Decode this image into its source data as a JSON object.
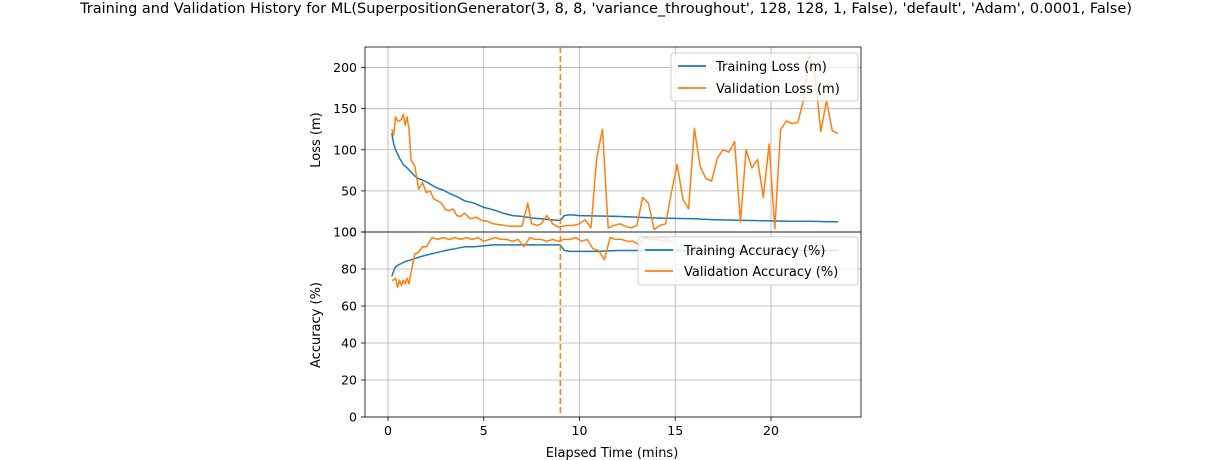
{
  "chart_data": {
    "title": "Training and Validation History for ML(SuperpositionGenerator(3, 8, 8, 'variance_throughout', 128, 128, 1, False), 'default', 'Adam', 0.0001, False)",
    "xlabel": "Elapsed Time (mins)",
    "xlim": [
      -1.2,
      24.7
    ],
    "x_ticks": [
      0,
      5,
      10,
      15,
      20
    ],
    "marker_x": 9.0,
    "marker_color": "#ff7f0e",
    "grid": true,
    "colors": {
      "training": "#1f77b4",
      "validation": "#ff7f0e"
    },
    "panels": [
      {
        "id": "loss",
        "type": "line",
        "ylabel": "Loss (m)",
        "ylim": [
          0,
          225
        ],
        "y_ticks": [
          0,
          50,
          100,
          150,
          200
        ],
        "legend": "top-right",
        "series": [
          {
            "name": "Training Loss (m)",
            "key": "training",
            "x": [
              0.2,
              0.3,
              0.4,
              0.5,
              0.6,
              0.7,
              0.8,
              0.9,
              1.0,
              1.2,
              1.4,
              1.6,
              1.8,
              2.0,
              2.3,
              2.6,
              2.9,
              3.2,
              3.6,
              4.0,
              4.5,
              5.0,
              5.5,
              6.0,
              6.5,
              7.0,
              7.5,
              8.0,
              8.5,
              9.0,
              9.2,
              9.5,
              10.0,
              11.0,
              12.0,
              13.0,
              14.0,
              15.0,
              16.0,
              17.0,
              18.0,
              19.0,
              20.0,
              21.0,
              22.0,
              23.0,
              23.5
            ],
            "values": [
              120,
              107,
              100,
              95,
              90,
              86,
              82,
              80,
              78,
              73,
              68,
              65,
              63,
              61,
              57,
              53,
              51,
              47,
              43,
              38,
              35,
              30,
              27,
              23,
              20,
              19,
              17,
              16,
              15,
              14,
              20,
              21,
              20,
              19.5,
              19,
              18,
              17,
              16.5,
              16,
              15,
              14.5,
              14,
              13.5,
              13,
              13,
              12.5,
              12.5
            ]
          },
          {
            "name": "Validation Loss (m)",
            "key": "validation",
            "x": [
              0.2,
              0.3,
              0.4,
              0.5,
              0.6,
              0.7,
              0.8,
              0.9,
              1.0,
              1.1,
              1.2,
              1.4,
              1.6,
              1.8,
              2.0,
              2.2,
              2.4,
              2.6,
              2.8,
              3.0,
              3.2,
              3.4,
              3.6,
              3.8,
              4.0,
              4.3,
              4.6,
              4.9,
              5.2,
              5.5,
              5.8,
              6.1,
              6.4,
              6.7,
              7.0,
              7.3,
              7.5,
              7.8,
              8.0,
              8.3,
              8.6,
              8.9,
              9.1,
              9.4,
              9.7,
              10.0,
              10.3,
              10.6,
              10.9,
              11.2,
              11.5,
              11.8,
              12.1,
              12.4,
              12.7,
              13.0,
              13.3,
              13.6,
              13.9,
              14.2,
              14.5,
              14.8,
              15.1,
              15.4,
              15.7,
              16.0,
              16.3,
              16.6,
              16.9,
              17.2,
              17.5,
              17.8,
              18.1,
              18.4,
              18.7,
              19.0,
              19.3,
              19.6,
              19.9,
              20.2,
              20.5,
              20.8,
              21.1,
              21.4,
              21.7,
              22.0,
              22.3,
              22.6,
              22.9,
              23.2,
              23.5
            ],
            "values": [
              125,
              118,
              140,
              135,
              135,
              137,
              143,
              130,
              140,
              125,
              88,
              80,
              52,
              60,
              48,
              50,
              40,
              38,
              35,
              27,
              26,
              28,
              20,
              19,
              23,
              16,
              18,
              14,
              13,
              10,
              9,
              8,
              7,
              7,
              7,
              35,
              10,
              8,
              10,
              20,
              10,
              6,
              7,
              8,
              8,
              10,
              15,
              5,
              90,
              125,
              5,
              8,
              10,
              7,
              5,
              8,
              42,
              35,
              3,
              8,
              10,
              48,
              82,
              40,
              28,
              126,
              80,
              65,
              62,
              90,
              100,
              97,
              110,
              12,
              100,
              78,
              88,
              42,
              107,
              4,
              124,
              135,
              132,
              133,
              160,
              215,
              190,
              122,
              160,
              123,
              120
            ]
          }
        ]
      },
      {
        "id": "accuracy",
        "type": "line",
        "ylabel": "Accuracy (%)",
        "ylim": [
          0,
          100
        ],
        "y_ticks": [
          0,
          20,
          40,
          60,
          80,
          100
        ],
        "legend": "top-right",
        "series": [
          {
            "name": "Training Accuracy (%)",
            "key": "training",
            "x": [
              0.2,
              0.3,
              0.4,
              0.5,
              0.7,
              0.9,
              1.2,
              1.5,
              1.8,
              2.2,
              2.6,
              3.0,
              3.5,
              4.0,
              4.5,
              5.0,
              5.5,
              6.0,
              6.5,
              7.0,
              7.5,
              8.0,
              8.5,
              9.0,
              9.2,
              9.5,
              10.0,
              11.0,
              12.0,
              13.0,
              14.0,
              15.0,
              16.0,
              17.0,
              18.0,
              19.0,
              20.0,
              21.0,
              22.0,
              23.0,
              23.5
            ],
            "values": [
              76,
              79,
              81,
              82,
              83,
              84,
              85,
              86,
              87,
              88,
              89,
              90,
              91,
              92,
              92,
              92.5,
              93,
              93,
              93,
              93,
              93,
              93,
              93,
              93,
              90,
              89.5,
              89.5,
              89.5,
              90,
              90,
              90,
              90,
              90,
              90,
              90,
              90,
              90,
              90,
              90,
              90,
              90
            ]
          },
          {
            "name": "Validation Accuracy (%)",
            "key": "validation",
            "x": [
              0.2,
              0.3,
              0.4,
              0.5,
              0.6,
              0.7,
              0.8,
              0.9,
              1.0,
              1.1,
              1.2,
              1.4,
              1.6,
              1.8,
              2.0,
              2.3,
              2.6,
              2.9,
              3.2,
              3.5,
              3.8,
              4.1,
              4.4,
              4.7,
              5.0,
              5.3,
              5.6,
              5.9,
              6.2,
              6.5,
              6.8,
              7.1,
              7.4,
              7.7,
              8.0,
              8.3,
              8.6,
              8.9,
              9.2,
              9.5,
              9.8,
              10.1,
              10.4,
              10.7,
              11.0,
              11.3,
              11.6,
              11.9,
              12.2,
              12.5,
              12.8,
              13.1,
              13.4,
              13.7,
              14.0,
              14.3,
              14.6,
              14.9
            ],
            "values": [
              74,
              74,
              75,
              70,
              74,
              71,
              74,
              72,
              75,
              72,
              78,
              88,
              89,
              92,
              92,
              97,
              96,
              97,
              96,
              97,
              96,
              97,
              96,
              97,
              95,
              96,
              97,
              96,
              96,
              95,
              96,
              92,
              97,
              96,
              96,
              95,
              96,
              95,
              96,
              96,
              97,
              95,
              96,
              91,
              90,
              85,
              97,
              96,
              96,
              95,
              95,
              93,
              97,
              96,
              96,
              95,
              96,
              94
            ]
          }
        ]
      }
    ]
  }
}
